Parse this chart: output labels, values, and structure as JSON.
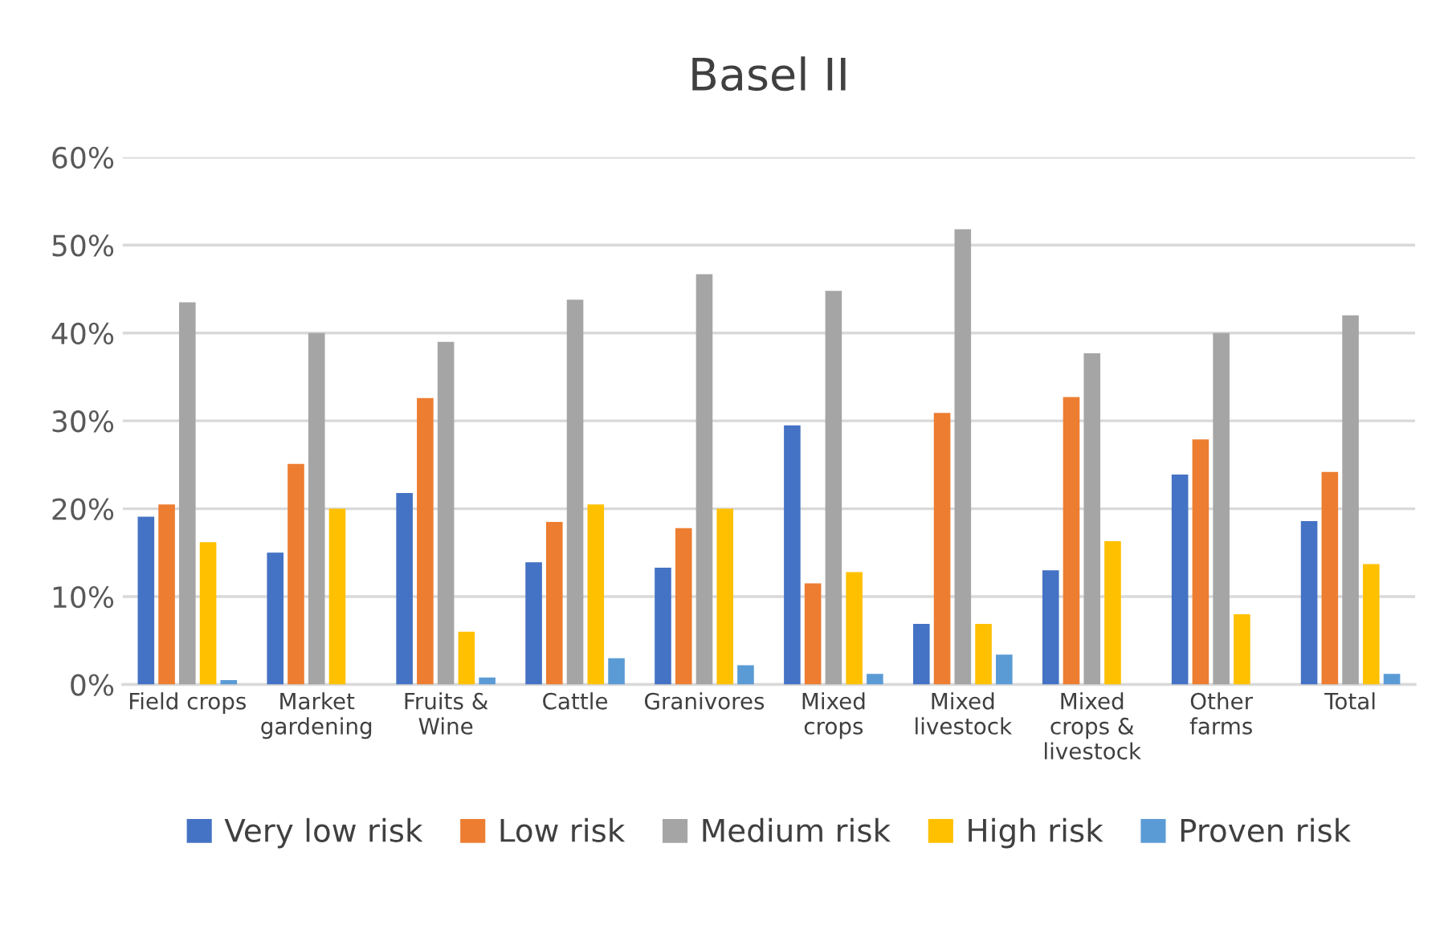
{
  "chart_data": {
    "type": "bar",
    "title": "Basel II",
    "categories": [
      "Field crops",
      "Market\ngardening",
      "Fruits &\nWine",
      "Cattle",
      "Granivores",
      "Mixed\ncrops",
      "Mixed\nlivestock",
      "Mixed\ncrops &\nlivestock",
      "Other\nfarms",
      "Total"
    ],
    "series": [
      {
        "name": "Very low risk",
        "color": "#4472c4",
        "values": [
          19.1,
          15.0,
          21.8,
          13.9,
          13.3,
          29.5,
          6.9,
          13.0,
          23.9,
          18.6
        ]
      },
      {
        "name": "Low risk",
        "color": "#ed7d31",
        "values": [
          20.5,
          25.1,
          32.6,
          18.5,
          17.8,
          11.5,
          30.9,
          32.7,
          27.9,
          24.2
        ]
      },
      {
        "name": "Medium risk",
        "color": "#a5a5a5",
        "values": [
          43.5,
          40.0,
          39.0,
          43.8,
          46.7,
          44.8,
          51.8,
          37.7,
          40.0,
          42.0
        ]
      },
      {
        "name": "High risk",
        "color": "#ffc000",
        "values": [
          16.2,
          20.0,
          6.0,
          20.5,
          20.0,
          12.8,
          6.9,
          16.3,
          8.0,
          13.7
        ]
      },
      {
        "name": "Proven risk",
        "color": "#5b9bd5",
        "values": [
          0.5,
          0,
          0.8,
          3.0,
          2.2,
          1.2,
          3.4,
          0,
          0,
          1.2
        ]
      }
    ],
    "ylim": [
      0,
      60
    ],
    "yticks": [
      {
        "value": 0,
        "label": "0%"
      },
      {
        "value": 10,
        "label": "10%"
      },
      {
        "value": 20,
        "label": "20%"
      },
      {
        "value": 30,
        "label": "30%"
      },
      {
        "value": 40,
        "label": "40%"
      },
      {
        "value": 50,
        "label": "50%"
      },
      {
        "value": 60,
        "label": "60%"
      }
    ],
    "grid": "y",
    "legend": "bottom"
  }
}
